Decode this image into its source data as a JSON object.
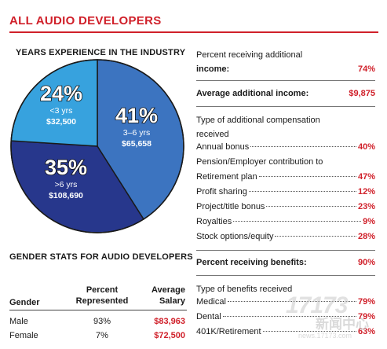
{
  "header": {
    "title": "ALL AUDIO DEVELOPERS"
  },
  "chart_data": {
    "type": "pie",
    "title": "YEARS EXPERIENCE IN THE INDUSTRY",
    "series": [
      {
        "name": "3–6 yrs",
        "value": 41,
        "pct_label": "41%",
        "salary": "$65,658",
        "color": "#3c74c0"
      },
      {
        "name": ">6 yrs",
        "value": 35,
        "pct_label": "35%",
        "salary": "$108,690",
        "color": "#27378c"
      },
      {
        "name": "<3 yrs",
        "value": 24,
        "pct_label": "24%",
        "salary": "$32,500",
        "color": "#37a2de"
      }
    ]
  },
  "gender": {
    "title": "GENDER STATS FOR AUDIO DEVELOPERS",
    "headers": {
      "gender": "Gender",
      "percent_1": "Percent",
      "percent_2": "Represented",
      "salary_1": "Average",
      "salary_2": "Salary"
    },
    "rows": [
      {
        "gender": "Male",
        "percent": "93%",
        "salary": "$83,963"
      },
      {
        "gender": "Female",
        "percent": "7%",
        "salary": "$72,500"
      }
    ]
  },
  "additional_income": {
    "label_1": "Percent receiving additional",
    "label_2": "income:",
    "value": "74%"
  },
  "avg_additional_income": {
    "label": "Average additional income:",
    "value": "$9,875"
  },
  "compensation": {
    "title_1": "Type of additional compensation",
    "title_2": "received",
    "items": [
      {
        "label": "Annual bonus",
        "value": "40%"
      },
      {
        "label": "Pension/Employer contribution to",
        "value": ""
      },
      {
        "label": "Retirement plan",
        "value": "47%"
      },
      {
        "label": "Profit sharing",
        "value": "12%"
      },
      {
        "label": "Project/title bonus",
        "value": "23%"
      },
      {
        "label": "Royalties",
        "value": "9%"
      },
      {
        "label": "Stock options/equity",
        "value": "28%"
      }
    ]
  },
  "benefits_pct": {
    "label": "Percent receiving benefits:",
    "value": "90%"
  },
  "benefits": {
    "title": "Type of benefits received",
    "items": [
      {
        "label": "Medical",
        "value": "79%"
      },
      {
        "label": "Dental",
        "value": "79%"
      },
      {
        "label": "401K/Retirement",
        "value": "63%"
      }
    ]
  },
  "watermark": {
    "big": "17173",
    "cn": "新闻中心",
    "url": "news.17173.com"
  }
}
